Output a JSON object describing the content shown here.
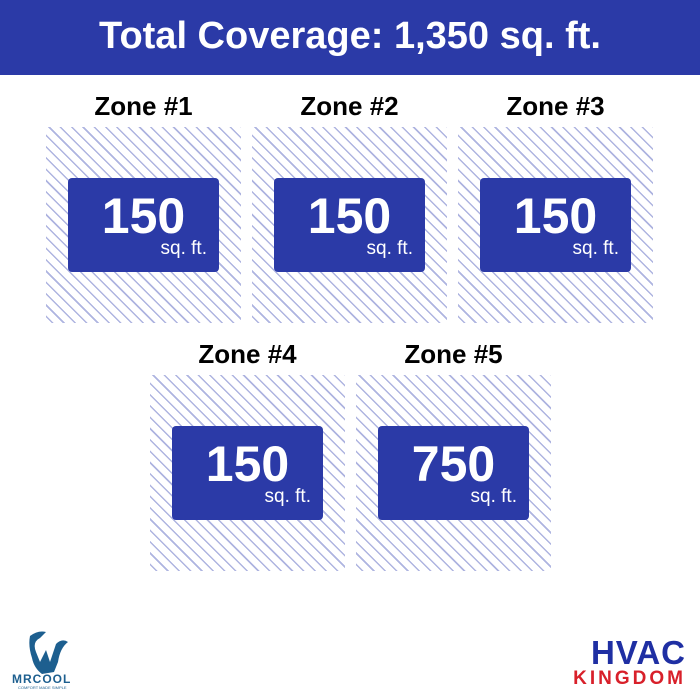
{
  "header": {
    "title": "Total Coverage: 1,350 sq. ft."
  },
  "zones": [
    {
      "label": "Zone #1",
      "value": "150",
      "unit": "sq. ft."
    },
    {
      "label": "Zone #2",
      "value": "150",
      "unit": "sq. ft."
    },
    {
      "label": "Zone #3",
      "value": "150",
      "unit": "sq. ft."
    },
    {
      "label": "Zone #4",
      "value": "150",
      "unit": "sq. ft."
    },
    {
      "label": "Zone #5",
      "value": "750",
      "unit": "sq. ft."
    }
  ],
  "logos": {
    "mrcool": "MRCOOL",
    "mrcool_tagline": "COMFORT MADE SIMPLE",
    "hvac": "HVAC",
    "kingdom": "KINGDOM"
  },
  "colors": {
    "primary": "#2b3aa7",
    "hatch": "#aeb4e0",
    "kingdom": "#d8202a"
  }
}
